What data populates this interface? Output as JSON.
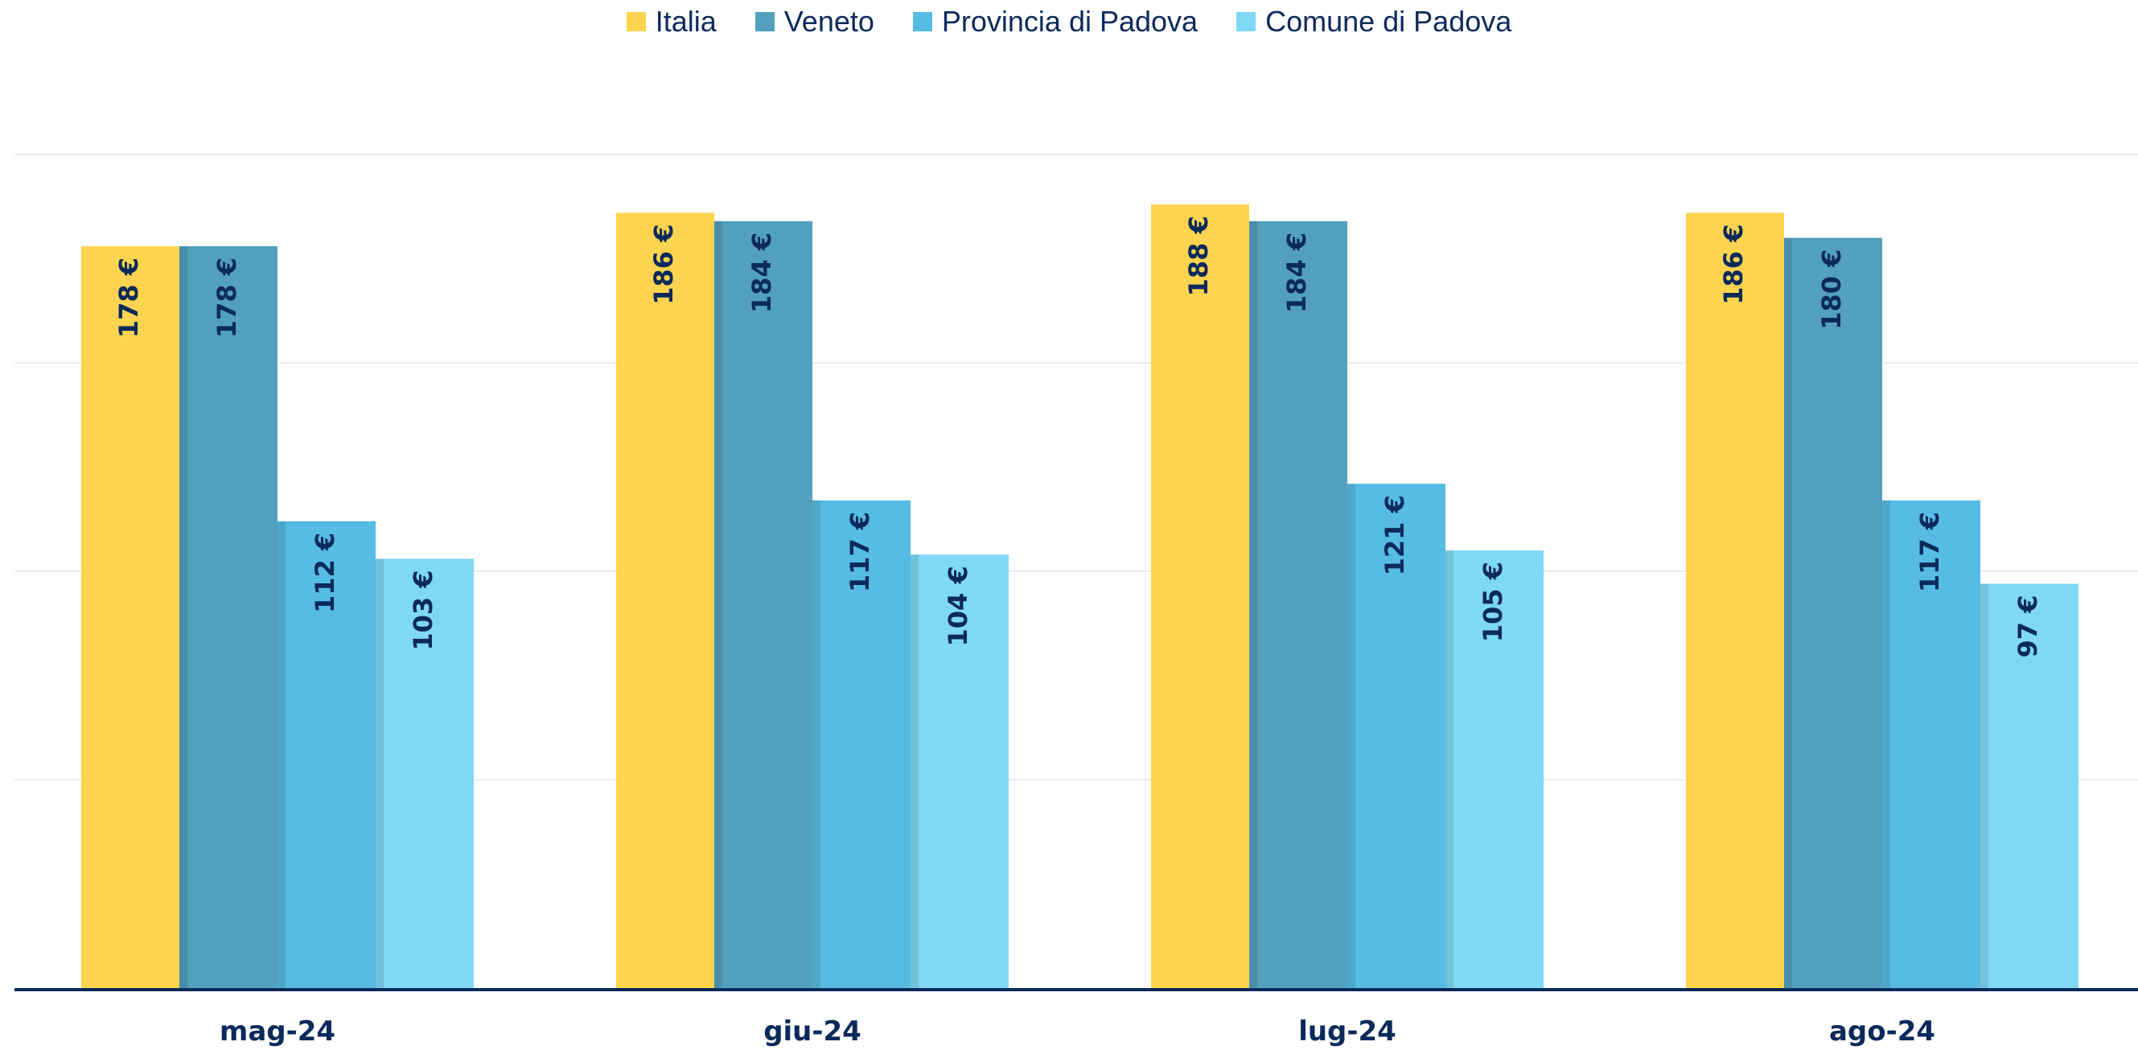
{
  "colors": {
    "text": "#0b2a5b",
    "grid": "#eeeeee",
    "axis": "#0b2a5b"
  },
  "chart_data": {
    "type": "bar",
    "title": "",
    "xlabel": "",
    "ylabel": "",
    "categories": [
      "mag-24",
      "giu-24",
      "lug-24",
      "ago-24"
    ],
    "ylim": [
      0,
      200
    ],
    "grid": true,
    "legend_position": "top-center",
    "value_suffix": " €",
    "series": [
      {
        "name": "Italia",
        "color": "#fdd44f",
        "values": [
          178,
          186,
          188,
          186
        ]
      },
      {
        "name": "Veneto",
        "color": "#53a0be",
        "values": [
          178,
          184,
          184,
          180
        ]
      },
      {
        "name": "Provincia di Padova",
        "color": "#56bce3",
        "values": [
          112,
          117,
          121,
          117
        ]
      },
      {
        "name": "Comune di Padova",
        "color": "#7fd8f5",
        "values": [
          103,
          104,
          105,
          97
        ]
      }
    ]
  }
}
